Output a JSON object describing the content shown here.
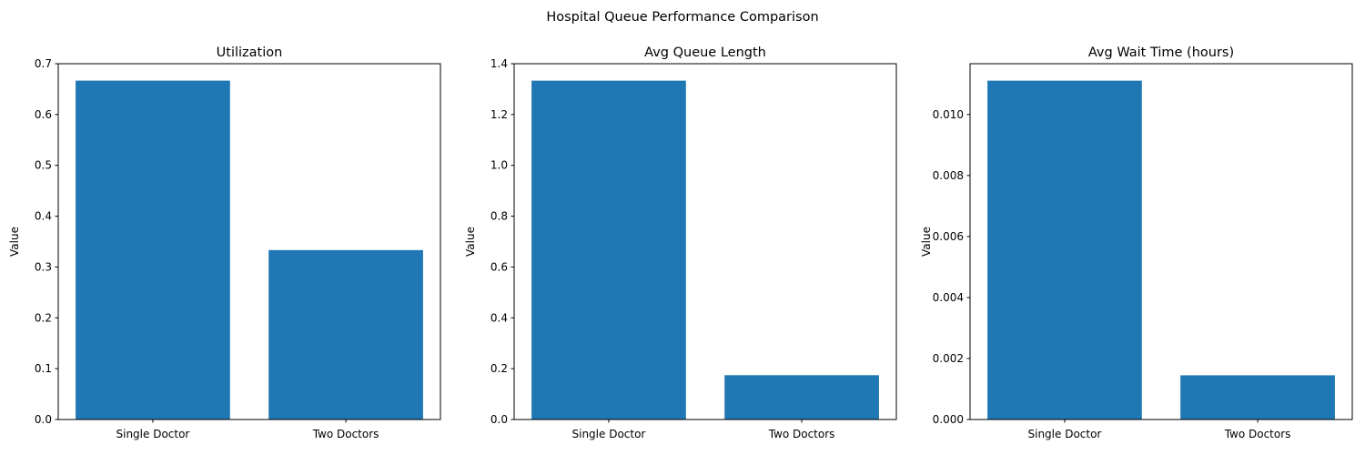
{
  "figure": {
    "title": "Hospital Queue Performance Comparison"
  },
  "colors": {
    "bar": "#1f77b4",
    "axis": "#000000"
  },
  "chart_data": [
    {
      "type": "bar",
      "title": "Utilization",
      "xlabel": "",
      "ylabel": "Value",
      "categories": [
        "Single Doctor",
        "Two Doctors"
      ],
      "values": [
        0.6667,
        0.3333
      ],
      "ylim": [
        0,
        0.7
      ],
      "yticks": [
        0.0,
        0.1,
        0.2,
        0.3,
        0.4,
        0.5,
        0.6,
        0.7
      ],
      "ytick_labels": [
        "0.0",
        "0.1",
        "0.2",
        "0.3",
        "0.4",
        "0.5",
        "0.6",
        "0.7"
      ]
    },
    {
      "type": "bar",
      "title": "Avg Queue Length",
      "xlabel": "",
      "ylabel": "Value",
      "categories": [
        "Single Doctor",
        "Two Doctors"
      ],
      "values": [
        1.3333,
        0.1744
      ],
      "ylim": [
        0,
        1.4
      ],
      "yticks": [
        0.0,
        0.2,
        0.4,
        0.6,
        0.8,
        1.0,
        1.2,
        1.4
      ],
      "ytick_labels": [
        "0.0",
        "0.2",
        "0.4",
        "0.6",
        "0.8",
        "1.0",
        "1.2",
        "1.4"
      ]
    },
    {
      "type": "bar",
      "title": "Avg Wait Time (hours)",
      "xlabel": "",
      "ylabel": "Value",
      "categories": [
        "Single Doctor",
        "Two Doctors"
      ],
      "values": [
        0.01111,
        0.00145
      ],
      "ylim": [
        0,
        0.011666
      ],
      "yticks": [
        0.0,
        0.002,
        0.004,
        0.006,
        0.008,
        0.01
      ],
      "ytick_labels": [
        "0.000",
        "0.002",
        "0.004",
        "0.006",
        "0.008",
        "0.010"
      ]
    }
  ]
}
